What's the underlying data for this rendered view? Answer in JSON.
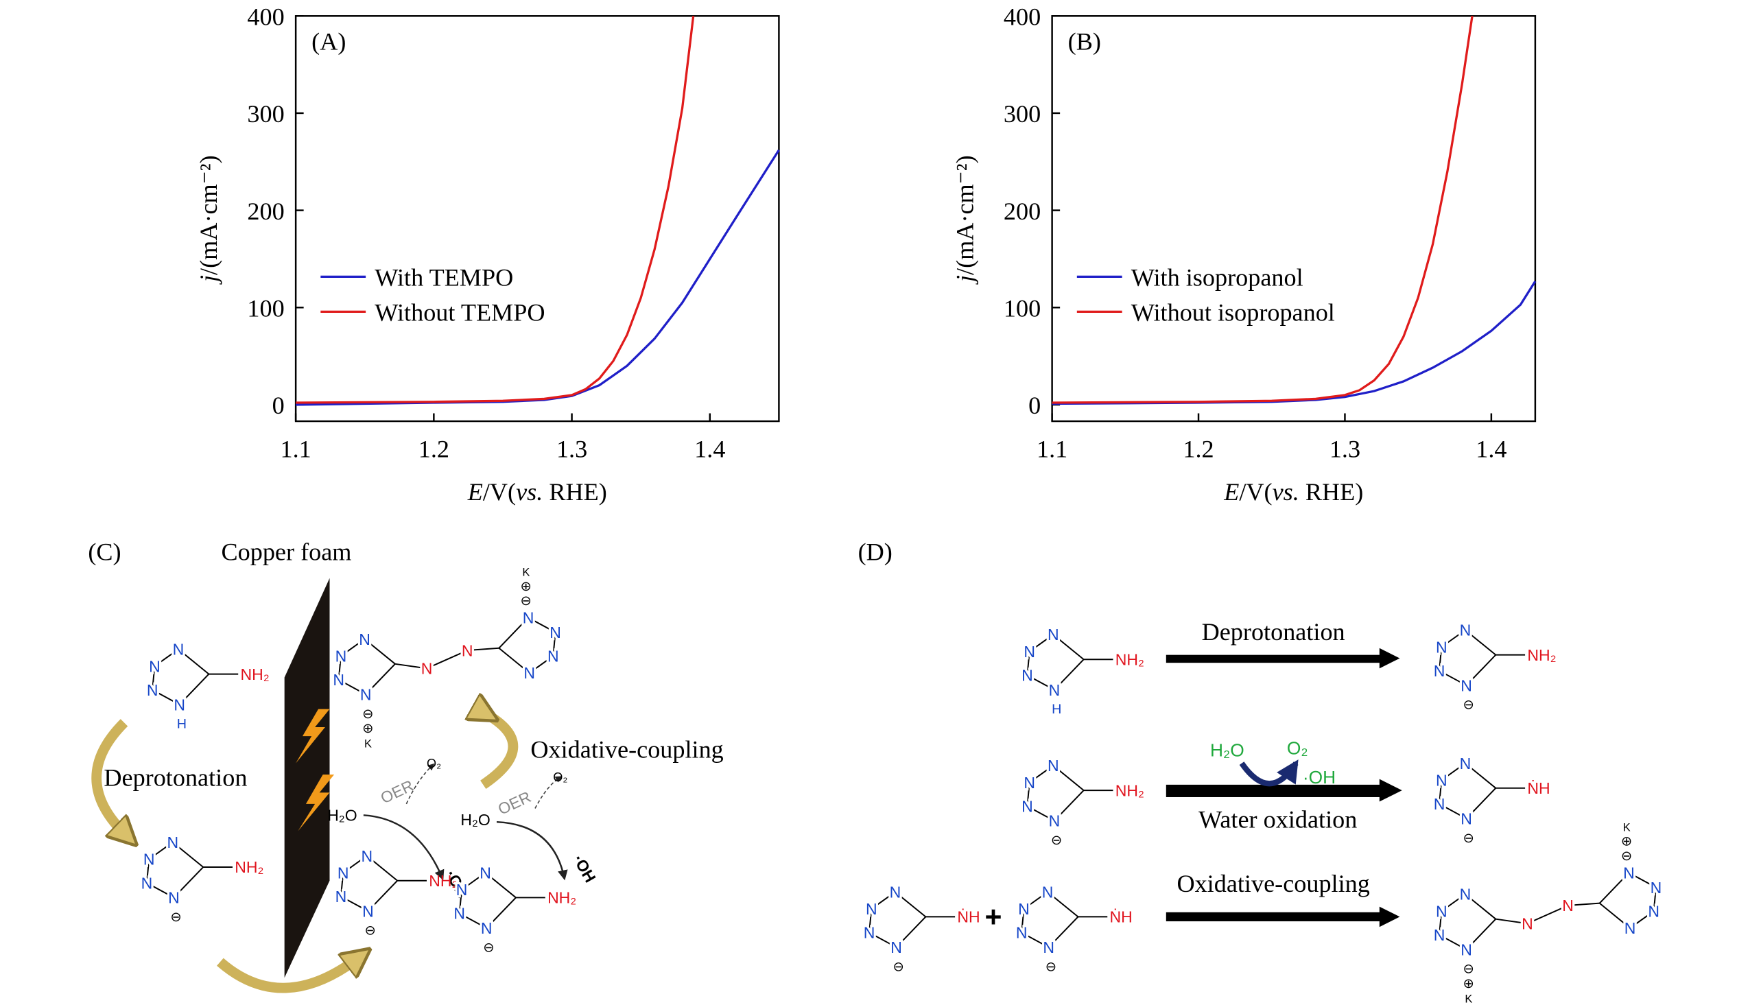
{
  "chart_data": [
    {
      "type": "line",
      "panel": "(A)",
      "xlabel": [
        "E",
        "/V(",
        "vs.",
        " RHE)"
      ],
      "ylabel": [
        "j",
        "/(mA·cm⁻²)"
      ],
      "xlim": [
        1.1,
        1.45
      ],
      "ylim": [
        -17,
        400
      ],
      "xticks": [
        1.1,
        1.2,
        1.3,
        1.4
      ],
      "yticks": [
        0,
        100,
        200,
        300,
        400
      ],
      "legend": "center-left",
      "series": [
        {
          "name": "With TEMPO",
          "color": "#1f1fc8",
          "x": [
            1.1,
            1.15,
            1.2,
            1.25,
            1.28,
            1.3,
            1.32,
            1.34,
            1.36,
            1.38,
            1.4,
            1.42,
            1.45
          ],
          "values": [
            0,
            1,
            2,
            3,
            5,
            9,
            20,
            40,
            68,
            105,
            150,
            195,
            262
          ]
        },
        {
          "name": "Without TEMPO",
          "color": "#e01b1b",
          "x": [
            1.1,
            1.2,
            1.25,
            1.28,
            1.3,
            1.31,
            1.32,
            1.33,
            1.34,
            1.35,
            1.36,
            1.37,
            1.38,
            1.388
          ],
          "values": [
            2,
            3,
            4,
            6,
            10,
            16,
            27,
            45,
            72,
            110,
            160,
            225,
            305,
            400
          ]
        }
      ]
    },
    {
      "type": "line",
      "panel": "(B)",
      "xlabel": [
        "E",
        "/V(",
        "vs.",
        " RHE)"
      ],
      "ylabel": [
        "j",
        "/(mA·cm⁻²)"
      ],
      "xlim": [
        1.1,
        1.43
      ],
      "ylim": [
        -17,
        400
      ],
      "xticks": [
        1.1,
        1.2,
        1.3,
        1.4
      ],
      "yticks": [
        0,
        100,
        200,
        300,
        400
      ],
      "legend": "center-left",
      "series": [
        {
          "name": "With isopropanol",
          "color": "#1f1fc8",
          "x": [
            1.1,
            1.2,
            1.25,
            1.28,
            1.3,
            1.32,
            1.34,
            1.36,
            1.38,
            1.4,
            1.42,
            1.43
          ],
          "values": [
            1,
            2,
            3,
            5,
            8,
            14,
            24,
            38,
            55,
            76,
            103,
            127
          ]
        },
        {
          "name": "Without isopropanol",
          "color": "#e01b1b",
          "x": [
            1.1,
            1.2,
            1.25,
            1.28,
            1.3,
            1.31,
            1.32,
            1.33,
            1.34,
            1.35,
            1.36,
            1.37,
            1.38,
            1.387
          ],
          "values": [
            2,
            3,
            4,
            6,
            10,
            15,
            25,
            42,
            70,
            110,
            165,
            240,
            330,
            400
          ]
        }
      ]
    }
  ],
  "chem": {
    "ring_atom": "N",
    "amino": "NH₂",
    "radical_amino": "ṄH",
    "hydrogen": "H",
    "anion": "⊖",
    "cation": "⊕",
    "counterion": "K",
    "azo": "N"
  },
  "panel_c": {
    "label": "(C)",
    "electrode": "Copper foam",
    "steps": [
      "Deprotonation",
      "Oxidative-coupling"
    ],
    "water": "H₂O",
    "oer": "OER",
    "oxygen": "O₂",
    "radical": "·OH"
  },
  "panel_d": {
    "label": "(D)",
    "steps": [
      "Deprotonation",
      "Water oxidation",
      "Oxidative-coupling"
    ],
    "water": "H₂O",
    "oxygen": "O₂",
    "radical": "·OH",
    "plus": "+"
  }
}
